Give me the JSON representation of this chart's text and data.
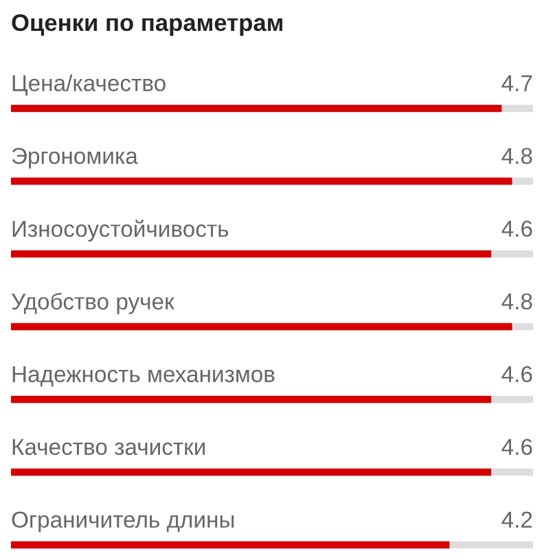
{
  "chart_data": {
    "type": "bar",
    "orientation": "horizontal",
    "title": "Оценки по параметрам",
    "categories": [
      "Цена/качество",
      "Эргономика",
      "Износоустойчивость",
      "Удобство ручек",
      "Надежность механизмов",
      "Качество зачистки",
      "Ограничитель длины"
    ],
    "values": [
      4.7,
      4.8,
      4.6,
      4.8,
      4.6,
      4.6,
      4.2
    ],
    "color": "#d50000",
    "xlim": [
      0,
      5
    ],
    "data_labels": true
  }
}
